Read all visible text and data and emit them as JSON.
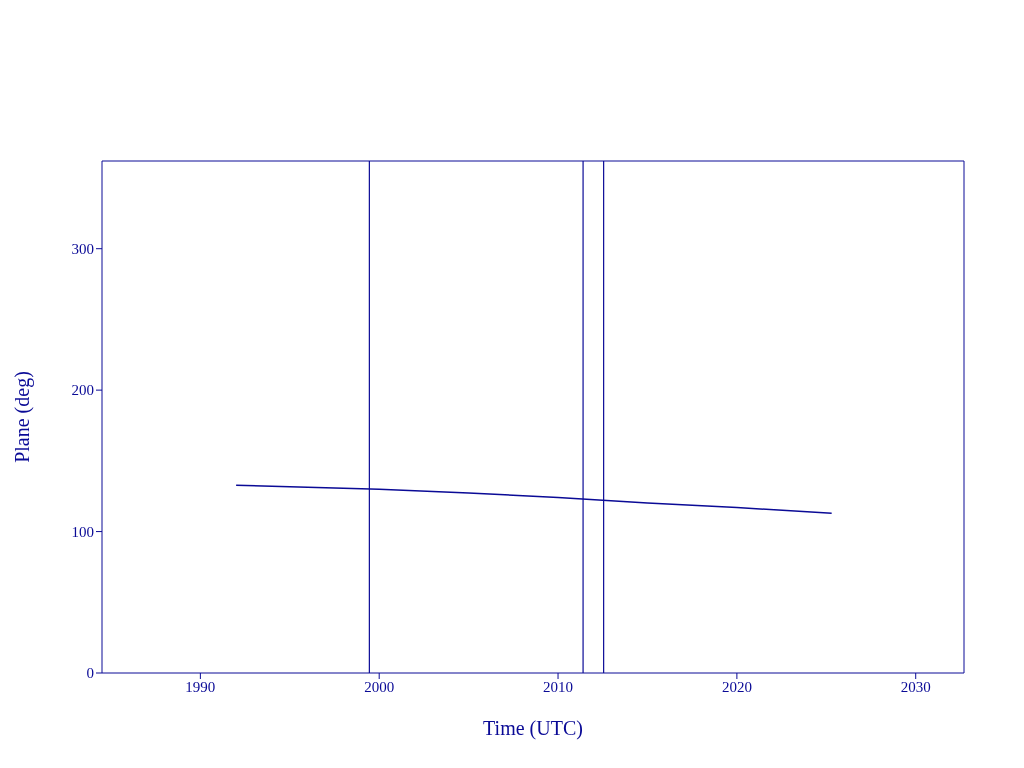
{
  "chart_data": {
    "type": "line",
    "xlabel": "Time (UTC)",
    "ylabel": "Plane (deg)",
    "x": [
      1992.0,
      1995.0,
      2000.0,
      2005.0,
      2010.0,
      2015.0,
      2020.0,
      2025.3
    ],
    "series": [
      {
        "color": "#0a0a96",
        "values": [
          132.8,
          131.6,
          130.0,
          127.3,
          124.1,
          120.2,
          117.0,
          112.9
        ]
      }
    ],
    "xlim": [
      1984.5,
      2032.7
    ],
    "xticks": [
      1990,
      2000,
      2010,
      2020,
      2030
    ],
    "ylim": [
      0,
      362
    ],
    "yticks": [
      0,
      100,
      200,
      300
    ],
    "ref_lines": [
      {
        "axis": "x",
        "value": 1999.45,
        "color": "#0a0a96"
      },
      {
        "axis": "x",
        "value": 2011.4,
        "color": "#0a0a96"
      },
      {
        "axis": "x",
        "value": 2012.55,
        "color": "#0a0a96"
      }
    ],
    "grid": false,
    "legend": false,
    "marker": "none",
    "line_style": "solid"
  }
}
